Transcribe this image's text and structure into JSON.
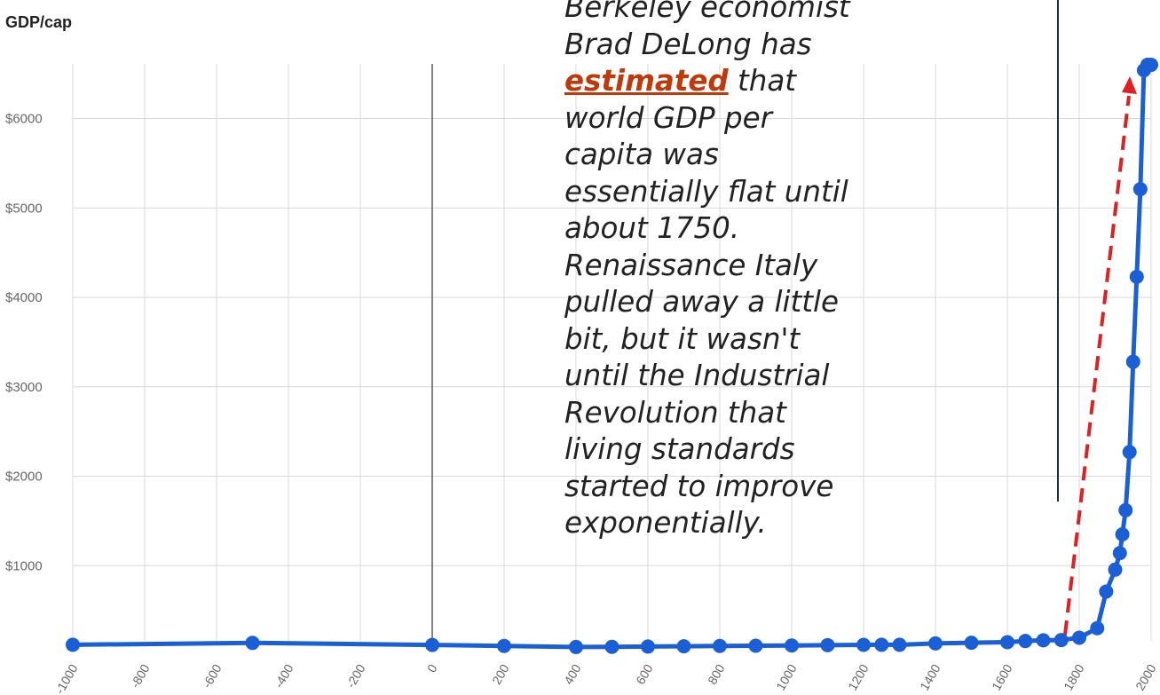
{
  "accent_color": "#1a5fd6",
  "arrow_color": "#e02020",
  "chart_data": {
    "type": "line",
    "ylabel": "GDP/cap",
    "xlabel": "",
    "xlim": [
      -1000,
      2000
    ],
    "ylim": [
      0,
      6800
    ],
    "x_ticks": [
      "-1000",
      "-800",
      "-600",
      "-400",
      "-200",
      "0",
      "200",
      "400",
      "600",
      "800",
      "1000",
      "1200",
      "1400",
      "1600",
      "1800",
      "2000"
    ],
    "y_ticks": [
      "$1000",
      "$2000",
      "$3000",
      "$4000",
      "$5000",
      "$6000"
    ],
    "grid": true,
    "legend": "none",
    "series": [
      {
        "x": [
          -1000,
          -500,
          0,
          200,
          400,
          500,
          600,
          700,
          800,
          900,
          1000,
          1100,
          1200,
          1250,
          1300,
          1400,
          1500,
          1600,
          1650,
          1700,
          1750,
          1800,
          1850,
          1875,
          1900,
          1913,
          1920,
          1929,
          1940,
          1950,
          1960,
          1970,
          1980,
          1990,
          2000
        ],
        "y": [
          115,
          136,
          113,
          102,
          90,
          92,
          95,
          98,
          102,
          104,
          107,
          111,
          114,
          115,
          115,
          130,
          138,
          144,
          157,
          165,
          168,
          194,
          300,
          710,
          955,
          1140,
          1350,
          1620,
          2270,
          3280,
          4230,
          5210,
          6540,
          6600,
          6600
        ]
      }
    ]
  },
  "annotation": {
    "lines": [
      "Berkeley economist",
      "Brad  DeLong has",
      "that",
      "world GDP per",
      "capita was",
      "essentially flat until",
      "about  1750.",
      "Renaissance Italy",
      "pulled away a little",
      "bit, but  it wasn't",
      "until the  Industrial",
      "Revolution that",
      "living standards",
      "started to  improve",
      "exponentially."
    ],
    "highlight": "estimated"
  }
}
